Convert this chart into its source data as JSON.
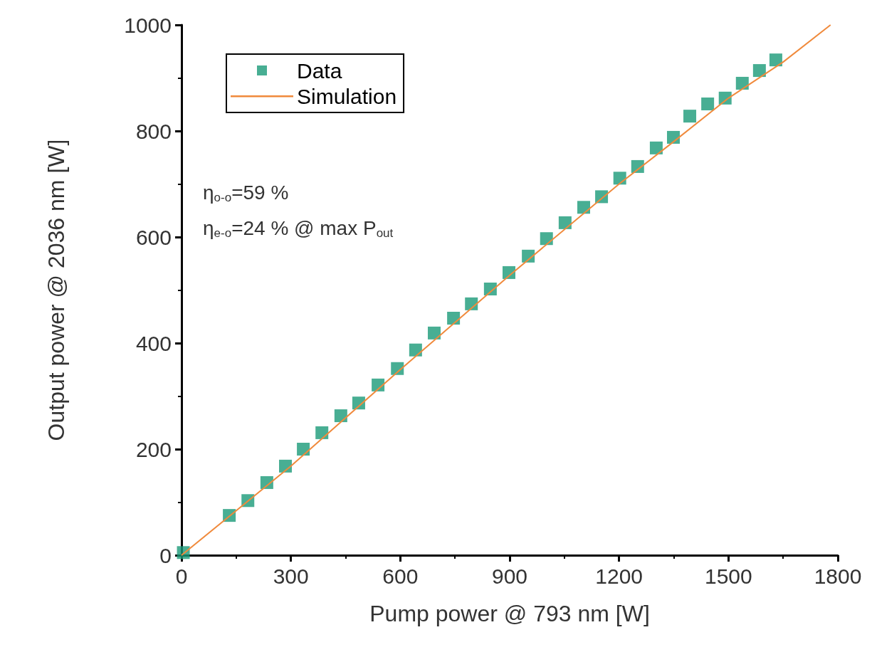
{
  "chart_data": {
    "type": "scatter",
    "xlabel": "Pump power @ 793 nm [W]",
    "ylabel": "Output power @ 2036 nm [W]",
    "xlim": [
      0,
      1800
    ],
    "xticks": [
      0,
      300,
      600,
      900,
      1200,
      1500,
      1800
    ],
    "ylim": [
      0,
      1000
    ],
    "yticks": [
      0,
      200,
      400,
      600,
      800,
      1000
    ],
    "grid": false,
    "legend": "top left",
    "marker": "square",
    "series": [
      {
        "name": "Data",
        "color": "#1a9a78",
        "x": [
          5,
          131,
          182,
          234,
          285,
          334,
          385,
          437,
          486,
          539,
          592,
          642,
          693,
          746,
          795,
          847,
          898,
          951,
          1001,
          1052,
          1103,
          1152,
          1202,
          1251,
          1302,
          1349,
          1394,
          1443,
          1491,
          1538,
          1585,
          1630
        ],
        "values": [
          5,
          75,
          103,
          137,
          168,
          200,
          231,
          263,
          287,
          321,
          352,
          387,
          419,
          447,
          474,
          502,
          533,
          564,
          597,
          627,
          656,
          676,
          711,
          733,
          768,
          788,
          828,
          851,
          862,
          890,
          914,
          934
        ]
      },
      {
        "name": "Simulation",
        "type": "line",
        "color": "#f08a3c",
        "marker": "none",
        "line_style": "solid",
        "x": [
          0,
          300,
          600,
          900,
          1200,
          1350,
          1500,
          1650,
          1780
        ],
        "values": [
          0,
          168,
          350,
          528,
          700,
          780,
          862,
          930,
          1000
        ]
      }
    ],
    "annotations": [
      "η$_{o-o}$=59 %",
      "η$_{e-o}$=24 % @ max P$_{out}$"
    ]
  }
}
